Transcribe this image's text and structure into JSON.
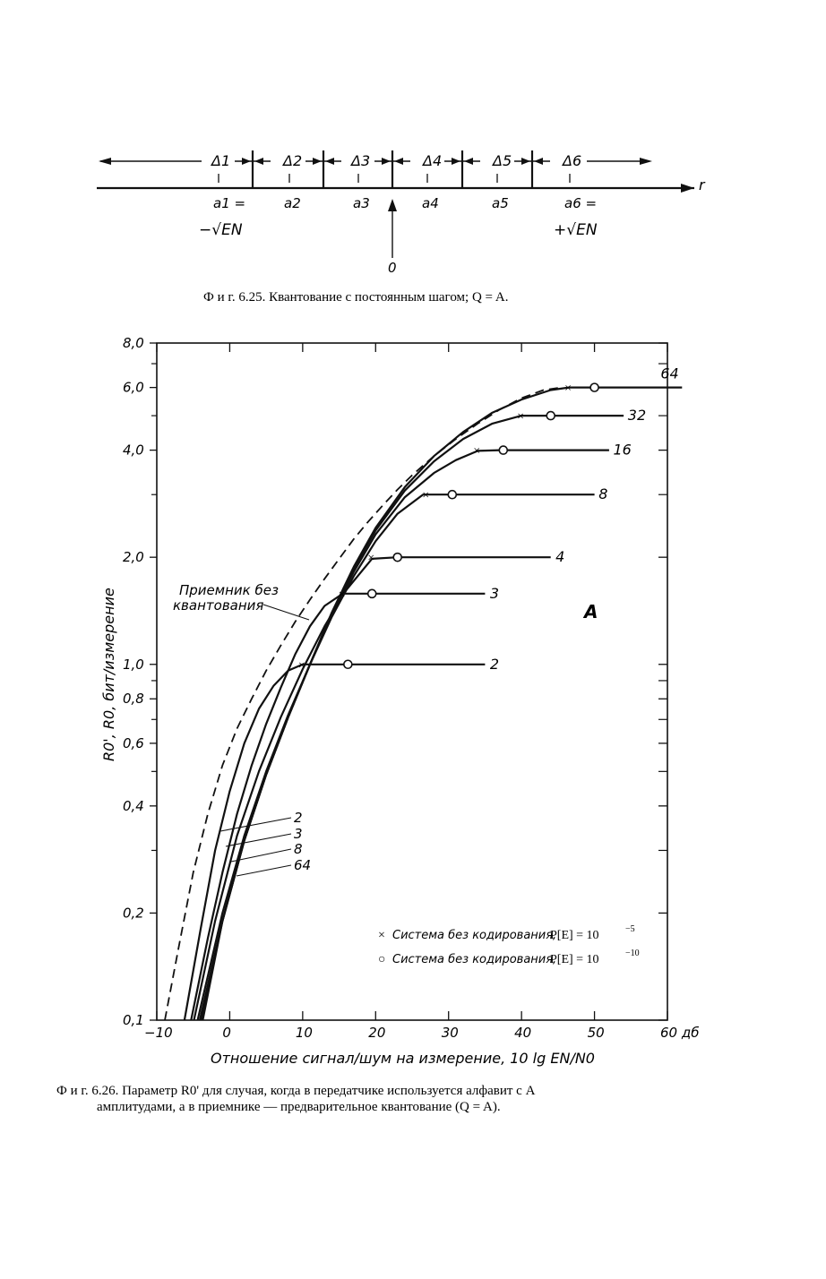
{
  "quant_figure": {
    "region_labels": [
      "Δ1",
      "Δ2",
      "Δ3",
      "Δ4",
      "Δ5",
      "Δ6"
    ],
    "axis_label": "r",
    "level_labels": [
      "a1 =",
      "a2",
      "a3",
      "a4",
      "a5",
      "a6 ="
    ],
    "a1_value": "−√EN",
    "a6_value": "+√EN",
    "zero_label": "0",
    "caption": "Ф и г.  6.25. Квантование с постоянным шагом; Q = A."
  },
  "chart_data": {
    "type": "line",
    "xlabel": "Отношение сигнал/шум на измерение, 10 lg EN/N0",
    "ylabel": "R0', R0, бит/измерение",
    "xlim": [
      -10,
      60
    ],
    "ylim": [
      0.1,
      8.0
    ],
    "y_scale": "log",
    "x_ticks": [
      -10,
      0,
      10,
      20,
      30,
      40,
      50,
      60
    ],
    "x_tick_labels": [
      "−10",
      "0",
      "10",
      "20",
      "30",
      "40",
      "50",
      "60 дб"
    ],
    "y_ticks": [
      0.1,
      0.2,
      0.4,
      0.6,
      0.8,
      1.0,
      2.0,
      4.0,
      6.0,
      8.0
    ],
    "y_tick_labels": [
      "0,1",
      "0,2",
      "0,4",
      "0,6",
      "0,8",
      "1,0",
      "2,0",
      "4,0",
      "6,0",
      "8,0"
    ],
    "y_minor_ticks": [
      0.3,
      0.5,
      0.7,
      0.9,
      3.0,
      5.0,
      7.0
    ],
    "grid": false,
    "series": [
      {
        "name": "2",
        "style": "solid",
        "x": [
          -6.2,
          -4,
          -2,
          0,
          2,
          4,
          6,
          8,
          10,
          16,
          35
        ],
        "y": [
          0.1,
          0.18,
          0.3,
          0.44,
          0.6,
          0.75,
          0.87,
          0.96,
          1.0,
          1.0,
          1.0
        ],
        "marker_x": 10,
        "marker_o": 16.2
      },
      {
        "name": "3",
        "style": "solid",
        "x": [
          -5.3,
          -3,
          -1,
          1,
          3,
          5,
          7,
          9,
          11,
          13,
          15.5,
          19.5,
          35
        ],
        "y": [
          0.1,
          0.17,
          0.26,
          0.38,
          0.52,
          0.68,
          0.86,
          1.07,
          1.28,
          1.46,
          1.58,
          1.58,
          1.58
        ]
      },
      {
        "name": "4",
        "style": "solid",
        "x": [
          -4.9,
          -2,
          1,
          4,
          7,
          10,
          13,
          16,
          19.5,
          23,
          44
        ],
        "y": [
          0.1,
          0.19,
          0.33,
          0.5,
          0.71,
          0.97,
          1.28,
          1.62,
          1.98,
          2.0,
          2.0
        ],
        "marker_x": 19.5,
        "marker_o": 23
      },
      {
        "name": "8",
        "style": "solid",
        "x": [
          -4.4,
          -1,
          2,
          5,
          8,
          11,
          14,
          17,
          20,
          23,
          26.5,
          30,
          50
        ],
        "y": [
          0.1,
          0.2,
          0.33,
          0.5,
          0.72,
          1.0,
          1.36,
          1.77,
          2.22,
          2.65,
          3.0,
          3.0,
          3.0
        ],
        "marker_x": 27,
        "marker_o": 30.5
      },
      {
        "name": "16",
        "style": "solid",
        "x": [
          -4.1,
          -1,
          2,
          5,
          8,
          11,
          14,
          17,
          20,
          24,
          28,
          31,
          34,
          37,
          52
        ],
        "y": [
          0.1,
          0.19,
          0.32,
          0.49,
          0.71,
          1.0,
          1.38,
          1.82,
          2.32,
          2.95,
          3.45,
          3.75,
          3.98,
          4.0,
          4.0
        ],
        "marker_x": 34,
        "marker_o": 37.5
      },
      {
        "name": "32",
        "style": "solid",
        "x": [
          -3.9,
          -1,
          2,
          5,
          8,
          11,
          14,
          17,
          20,
          24,
          28,
          32,
          36,
          40,
          43.5,
          54
        ],
        "y": [
          0.1,
          0.19,
          0.32,
          0.49,
          0.71,
          1.0,
          1.39,
          1.86,
          2.38,
          3.08,
          3.72,
          4.3,
          4.75,
          5.0,
          5.0,
          5.0
        ],
        "marker_x": 40,
        "marker_o": 44
      },
      {
        "name": "64",
        "style": "solid",
        "x": [
          -3.7,
          -1,
          2,
          5,
          8,
          11,
          14,
          17,
          20,
          24,
          28,
          32,
          36,
          40,
          44,
          46.5,
          50,
          62
        ],
        "y": [
          0.1,
          0.19,
          0.32,
          0.49,
          0.71,
          1.0,
          1.4,
          1.88,
          2.42,
          3.15,
          3.85,
          4.5,
          5.1,
          5.55,
          5.9,
          6.0,
          6.0,
          6.0
        ],
        "marker_x": 46.5,
        "marker_o": 50
      },
      {
        "name": "Приемник без квантования",
        "style": "dashed",
        "x": [
          -8.9,
          -7,
          -5,
          -3,
          -1,
          1,
          3,
          5,
          7,
          9,
          11,
          13,
          15,
          17,
          19,
          21,
          23,
          25,
          28,
          31,
          34,
          37,
          40,
          43,
          45.5
        ],
        "y": [
          0.1,
          0.16,
          0.26,
          0.38,
          0.52,
          0.66,
          0.8,
          0.96,
          1.13,
          1.32,
          1.52,
          1.74,
          1.98,
          2.25,
          2.52,
          2.8,
          3.1,
          3.4,
          3.85,
          4.3,
          4.75,
          5.2,
          5.6,
          5.9,
          6.0
        ]
      }
    ],
    "curve_labels": {
      "right": [
        "64",
        "32",
        "16",
        "8",
        "4",
        "3",
        "2"
      ],
      "left": [
        "2",
        "3",
        "8",
        "64"
      ]
    },
    "annotation_receiver": [
      "Приемник без",
      "квантования"
    ],
    "annotation_A": "A",
    "legend": {
      "placement": "lower-right",
      "entries": [
        {
          "marker": "×",
          "label": "Система без кодирования,",
          "prob": "P[E] = 10"
        },
        {
          "marker": "○",
          "label": "Система без кодирования,",
          "prob": "P[E] = 10"
        }
      ],
      "exponents": [
        "−5",
        "−10"
      ]
    },
    "caption_lines": [
      "Ф и г.  6.26. Параметр R0' для случая, когда в передатчике используется алфавит с A",
      "амплитудами, а в приемнике — предварительное квантование (Q = A)."
    ]
  }
}
